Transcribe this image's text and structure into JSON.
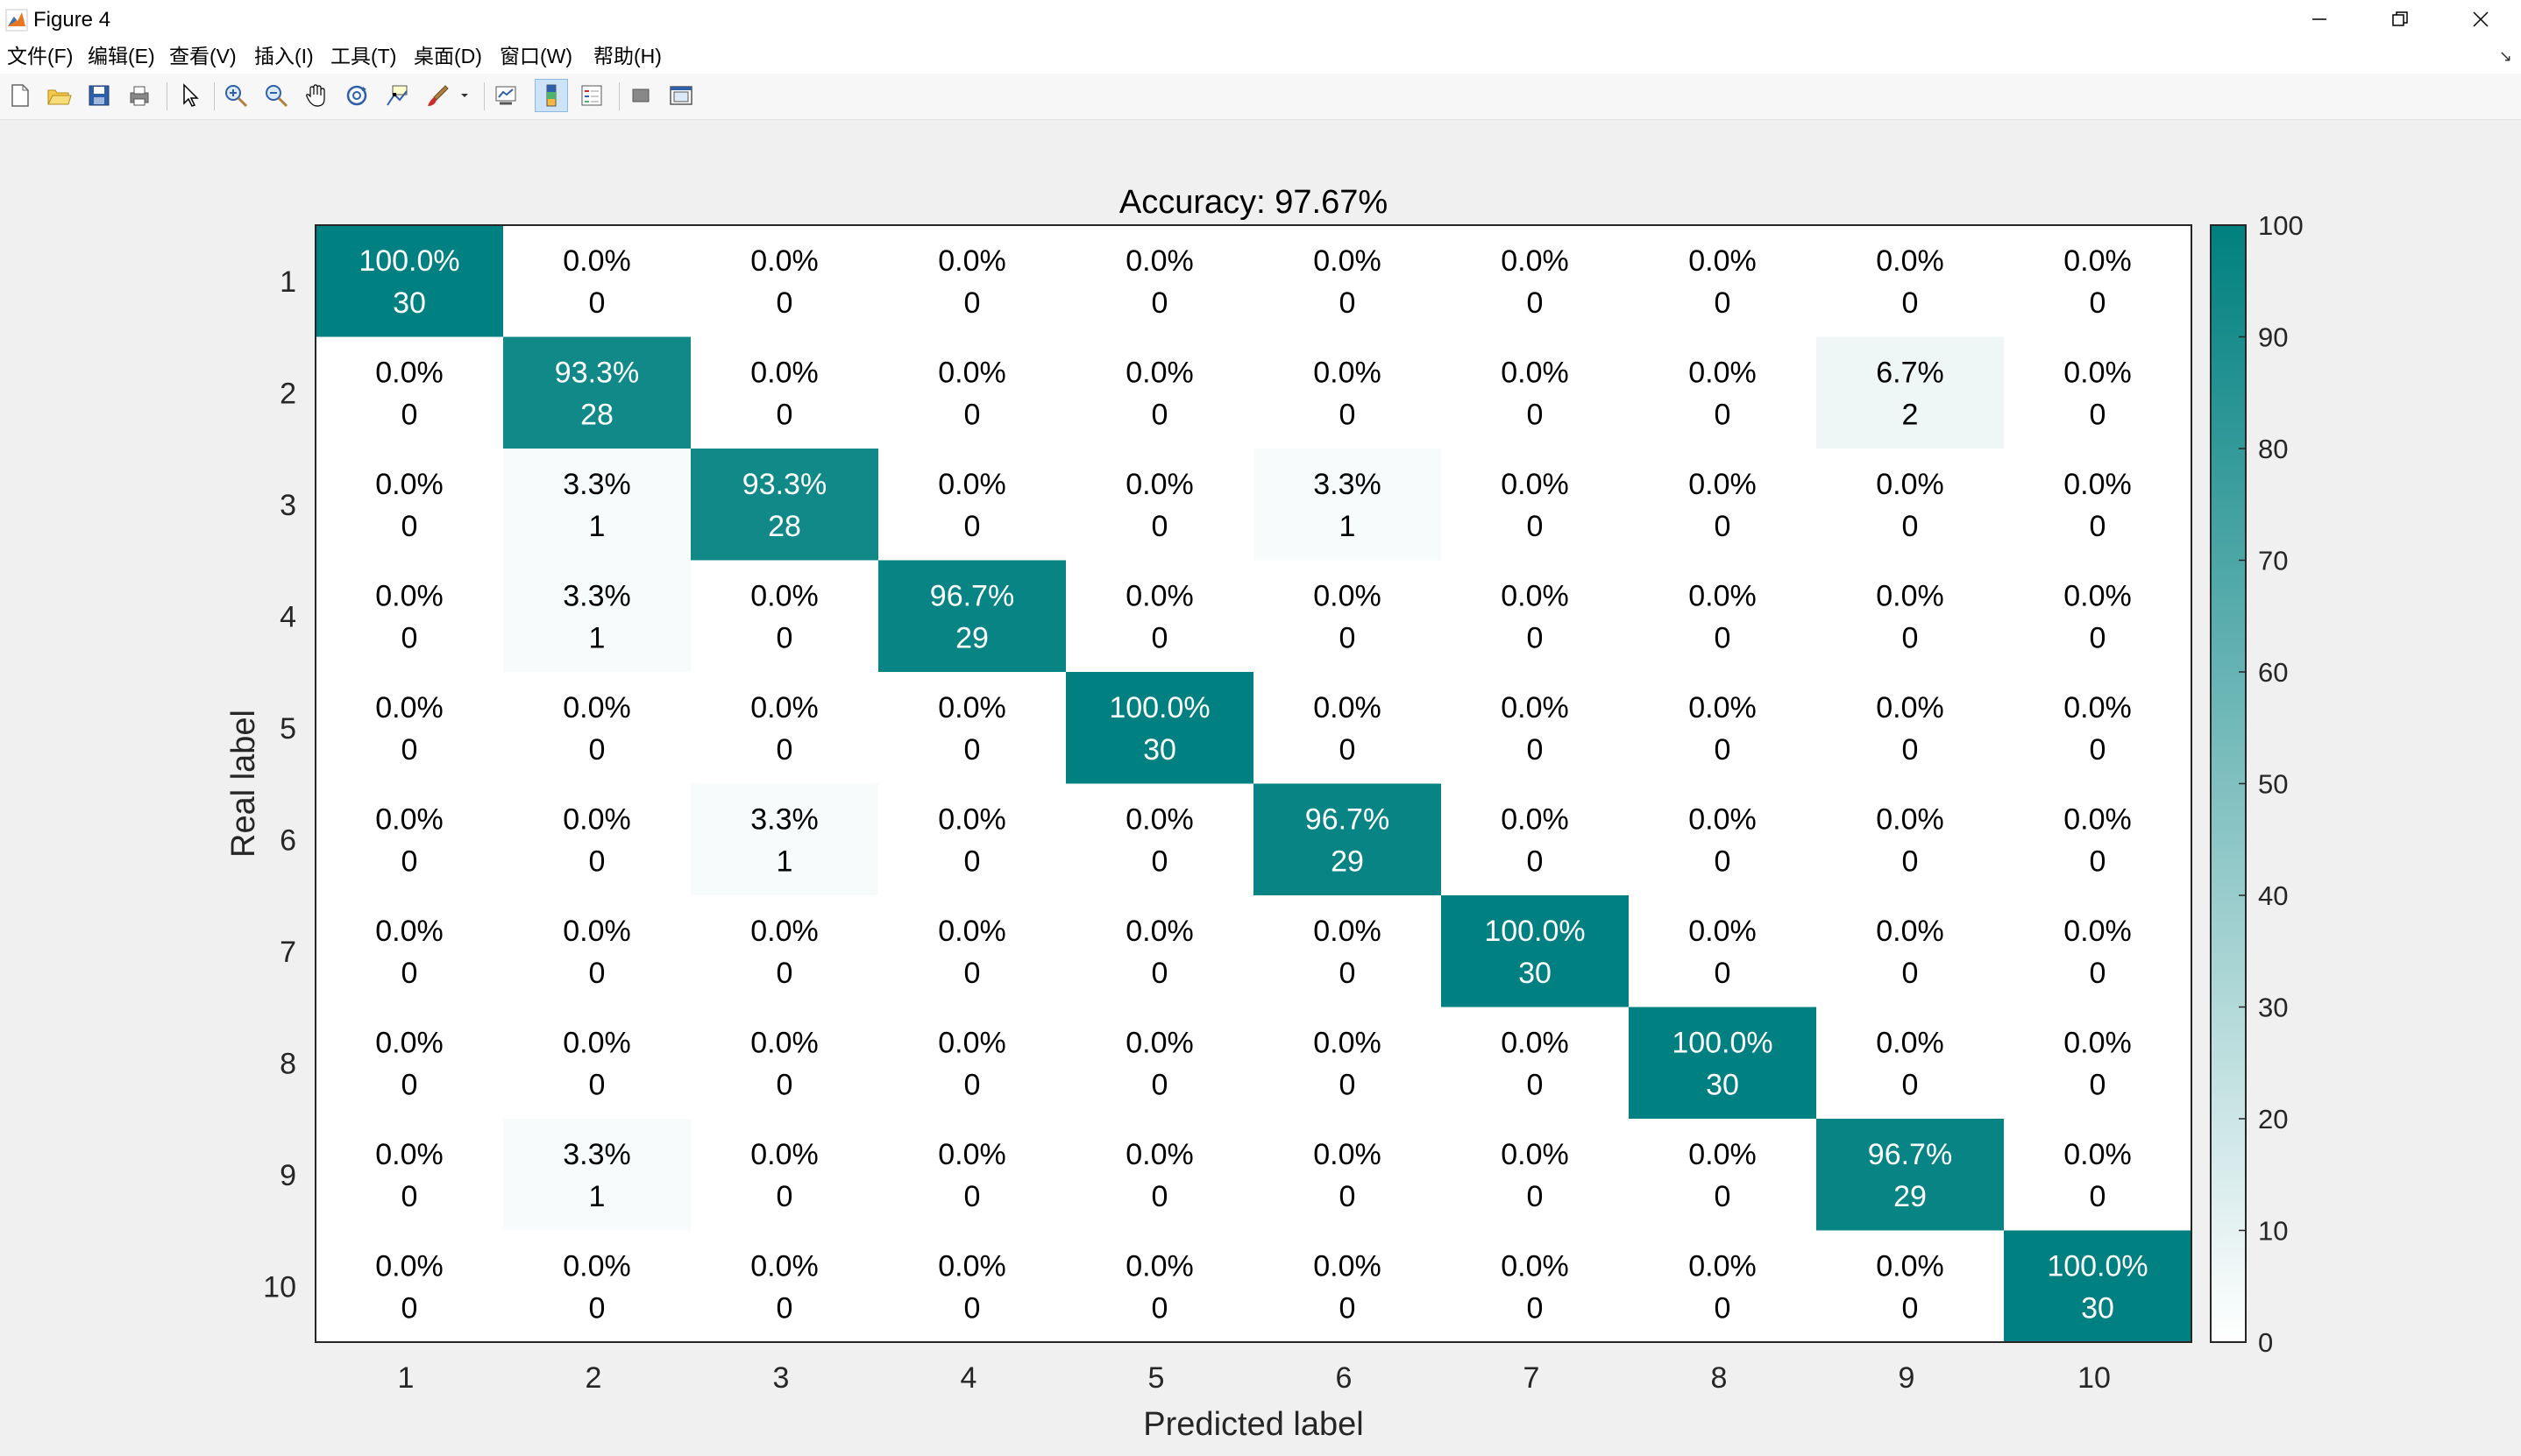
{
  "window": {
    "title": "Figure 4"
  },
  "menu": [
    "文件(F)",
    "编辑(E)",
    "查看(V)",
    "插入(I)",
    "工具(T)",
    "桌面(D)",
    "窗口(W)",
    "帮助(H)"
  ],
  "toolbar": [
    {
      "icon": "new-figure-icon"
    },
    {
      "icon": "open-file-icon"
    },
    {
      "icon": "save-icon"
    },
    {
      "icon": "print-icon"
    },
    {
      "icon": "select-arrow-icon"
    },
    {
      "icon": "zoom-in-icon"
    },
    {
      "icon": "zoom-out-icon"
    },
    {
      "icon": "pan-hand-icon"
    },
    {
      "icon": "rotate-3d-icon"
    },
    {
      "icon": "data-cursor-icon"
    },
    {
      "icon": "brush-icon"
    },
    {
      "icon": "link-plot-icon"
    },
    {
      "icon": "colorbar-icon"
    },
    {
      "icon": "legend-icon"
    },
    {
      "icon": "hide-plot-tools-icon"
    },
    {
      "icon": "show-plot-tools-icon"
    }
  ],
  "colors": {
    "accent": "#008080",
    "low": "#ffffff",
    "text_dark": "#000000",
    "text_light": "#ffffff"
  },
  "chart_data": {
    "type": "heatmap",
    "title": "Accuracy: 97.67%",
    "xlabel": "Predicted label",
    "ylabel": "Real label",
    "x_categories": [
      "1",
      "2",
      "3",
      "4",
      "5",
      "6",
      "7",
      "8",
      "9",
      "10"
    ],
    "y_categories": [
      "1",
      "2",
      "3",
      "4",
      "5",
      "6",
      "7",
      "8",
      "9",
      "10"
    ],
    "percent_labels": [
      [
        "100.0%",
        "0.0%",
        "0.0%",
        "0.0%",
        "0.0%",
        "0.0%",
        "0.0%",
        "0.0%",
        "0.0%",
        "0.0%"
      ],
      [
        "0.0%",
        "93.3%",
        "0.0%",
        "0.0%",
        "0.0%",
        "0.0%",
        "0.0%",
        "0.0%",
        "6.7%",
        "0.0%"
      ],
      [
        "0.0%",
        "3.3%",
        "93.3%",
        "0.0%",
        "0.0%",
        "3.3%",
        "0.0%",
        "0.0%",
        "0.0%",
        "0.0%"
      ],
      [
        "0.0%",
        "3.3%",
        "0.0%",
        "96.7%",
        "0.0%",
        "0.0%",
        "0.0%",
        "0.0%",
        "0.0%",
        "0.0%"
      ],
      [
        "0.0%",
        "0.0%",
        "0.0%",
        "0.0%",
        "100.0%",
        "0.0%",
        "0.0%",
        "0.0%",
        "0.0%",
        "0.0%"
      ],
      [
        "0.0%",
        "0.0%",
        "3.3%",
        "0.0%",
        "0.0%",
        "96.7%",
        "0.0%",
        "0.0%",
        "0.0%",
        "0.0%"
      ],
      [
        "0.0%",
        "0.0%",
        "0.0%",
        "0.0%",
        "0.0%",
        "0.0%",
        "100.0%",
        "0.0%",
        "0.0%",
        "0.0%"
      ],
      [
        "0.0%",
        "0.0%",
        "0.0%",
        "0.0%",
        "0.0%",
        "0.0%",
        "0.0%",
        "100.0%",
        "0.0%",
        "0.0%"
      ],
      [
        "0.0%",
        "3.3%",
        "0.0%",
        "0.0%",
        "0.0%",
        "0.0%",
        "0.0%",
        "0.0%",
        "96.7%",
        "0.0%"
      ],
      [
        "0.0%",
        "0.0%",
        "0.0%",
        "0.0%",
        "0.0%",
        "0.0%",
        "0.0%",
        "0.0%",
        "0.0%",
        "100.0%"
      ]
    ],
    "count_labels": [
      [
        "30",
        "0",
        "0",
        "0",
        "0",
        "0",
        "0",
        "0",
        "0",
        "0"
      ],
      [
        "0",
        "28",
        "0",
        "0",
        "0",
        "0",
        "0",
        "0",
        "2",
        "0"
      ],
      [
        "0",
        "1",
        "28",
        "0",
        "0",
        "1",
        "0",
        "0",
        "0",
        "0"
      ],
      [
        "0",
        "1",
        "0",
        "29",
        "0",
        "0",
        "0",
        "0",
        "0",
        "0"
      ],
      [
        "0",
        "0",
        "0",
        "0",
        "30",
        "0",
        "0",
        "0",
        "0",
        "0"
      ],
      [
        "0",
        "0",
        "1",
        "0",
        "0",
        "29",
        "0",
        "0",
        "0",
        "0"
      ],
      [
        "0",
        "0",
        "0",
        "0",
        "0",
        "0",
        "30",
        "0",
        "0",
        "0"
      ],
      [
        "0",
        "0",
        "0",
        "0",
        "0",
        "0",
        "0",
        "30",
        "0",
        "0"
      ],
      [
        "0",
        "1",
        "0",
        "0",
        "0",
        "0",
        "0",
        "0",
        "29",
        "0"
      ],
      [
        "0",
        "0",
        "0",
        "0",
        "0",
        "0",
        "0",
        "0",
        "0",
        "30"
      ]
    ],
    "colorbar": {
      "range": [
        0,
        100
      ],
      "ticks": [
        "0",
        "10",
        "20",
        "30",
        "40",
        "50",
        "60",
        "70",
        "80",
        "90",
        "100"
      ]
    }
  }
}
